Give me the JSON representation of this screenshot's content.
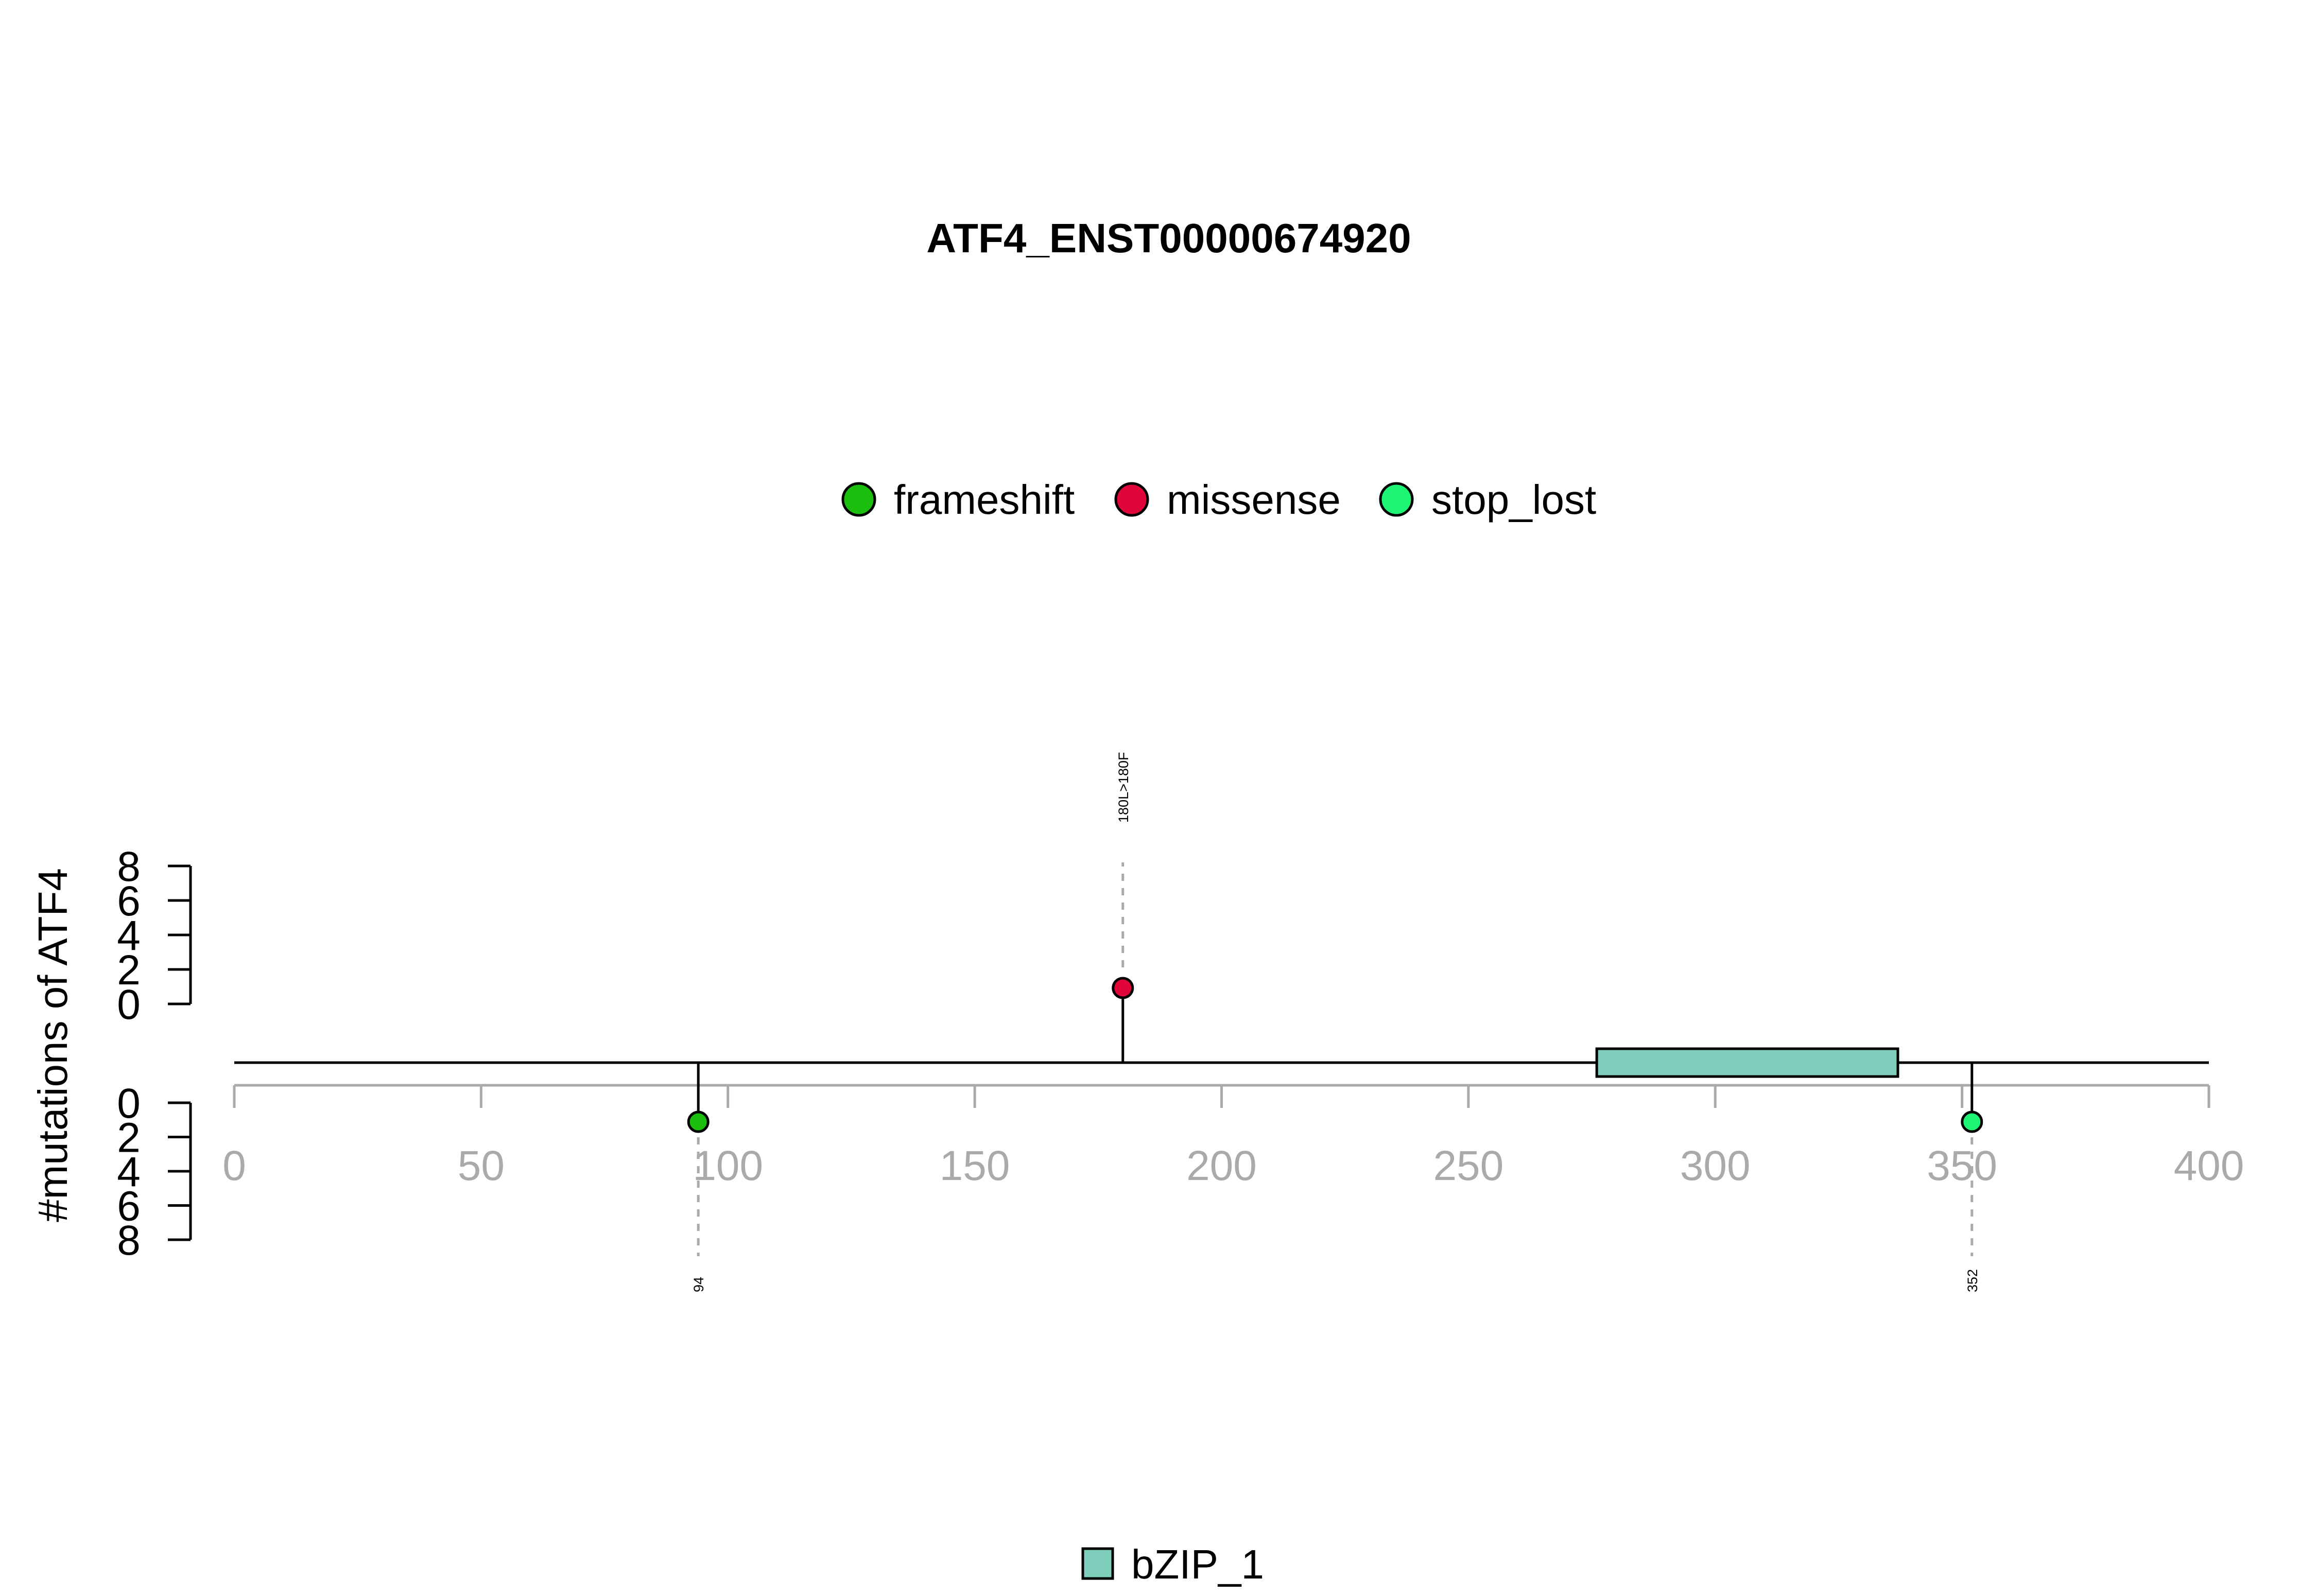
{
  "chart_data": {
    "type": "lollipop",
    "title": "ATF4_ENST00000674920",
    "ylabel": "#mutations of ATF4",
    "xlim": [
      0,
      400
    ],
    "xticks": [
      "0",
      "50",
      "100",
      "150",
      "200",
      "250",
      "300",
      "350",
      "400"
    ],
    "xtick_values": [
      0,
      50,
      100,
      150,
      200,
      250,
      300,
      350,
      400
    ],
    "yticks_top": [
      "0",
      "2",
      "4",
      "6",
      "8"
    ],
    "yticks_bottom": [
      "0",
      "2",
      "4",
      "6",
      "8"
    ],
    "ytick_values": [
      0,
      2,
      4,
      6,
      8
    ],
    "ylim": [
      0,
      8
    ],
    "legend": [
      {
        "label": "frameshift",
        "color": "#1cbf0e"
      },
      {
        "label": "missense",
        "color": "#e0063a"
      },
      {
        "label": "stop_lost",
        "color": "#1ef575"
      }
    ],
    "mutations": [
      {
        "position": 94,
        "count": 1,
        "type": "frameshift",
        "label": "94",
        "side": "bottom",
        "color": "#1cbf0e"
      },
      {
        "position": 180,
        "count": 1,
        "type": "missense",
        "label": "180L>180F",
        "side": "top",
        "color": "#e0063a"
      },
      {
        "position": 352,
        "count": 1,
        "type": "stop_lost",
        "label": "352",
        "side": "bottom",
        "color": "#1ef575"
      }
    ],
    "domains": [
      {
        "name": "bZIP_1",
        "start": 276,
        "end": 337,
        "color": "#7fcdbb"
      }
    ],
    "domain_legend": [
      {
        "label": "bZIP_1",
        "color": "#7fcdbb"
      }
    ],
    "axis_color": "#aaaaaa",
    "guide_color": "#aaaaaa"
  }
}
